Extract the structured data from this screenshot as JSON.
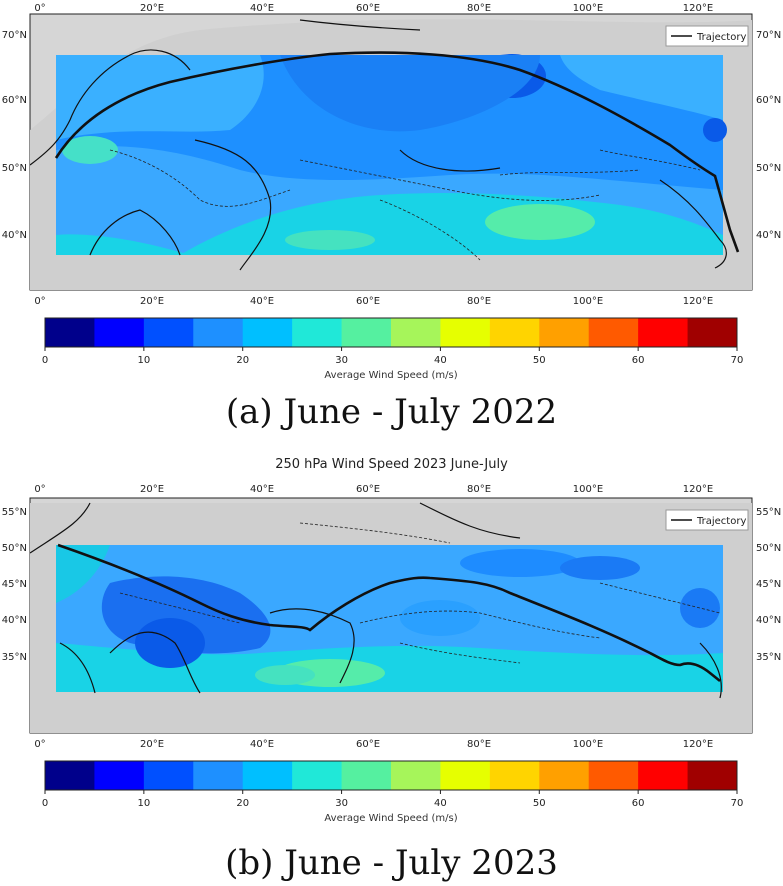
{
  "panels": [
    {
      "id": "a",
      "title": "",
      "caption": "(a) June - July 2022",
      "legend_label": "Trajectory",
      "lon_ticks": [
        "0°",
        "20°E",
        "40°E",
        "60°E",
        "80°E",
        "100°E",
        "120°E"
      ],
      "lat_ticks": [
        "70°N",
        "60°N",
        "50°N",
        "40°N"
      ],
      "colorbar_label": "Average Wind Speed (m/s)",
      "colorbar_ticks": [
        "0",
        "10",
        "20",
        "30",
        "40",
        "50",
        "60",
        "70"
      ]
    },
    {
      "id": "b",
      "title": "250 hPa Wind Speed 2023 June-July",
      "caption": "(b) June - July 2023",
      "legend_label": "Trajectory",
      "lon_ticks": [
        "0°",
        "20°E",
        "40°E",
        "60°E",
        "80°E",
        "100°E",
        "120°E"
      ],
      "lat_ticks": [
        "55°N",
        "50°N",
        "45°N",
        "40°N",
        "35°N"
      ],
      "colorbar_label": "Average Wind Speed (m/s)",
      "colorbar_ticks": [
        "0",
        "10",
        "20",
        "30",
        "40",
        "50",
        "60",
        "70"
      ]
    }
  ],
  "colorbar_colors": [
    "#00008b",
    "#0000ff",
    "#0050ff",
    "#1e90ff",
    "#00bfff",
    "#20e8d8",
    "#55f0a0",
    "#a6f55a",
    "#e6ff00",
    "#ffd400",
    "#ffa000",
    "#ff5a00",
    "#ff0000",
    "#a00000"
  ],
  "colors": {
    "ocean": "#d4d4d4",
    "trajectory": "#111111",
    "coast": "#111111",
    "field_base": "#1e90ff"
  }
}
